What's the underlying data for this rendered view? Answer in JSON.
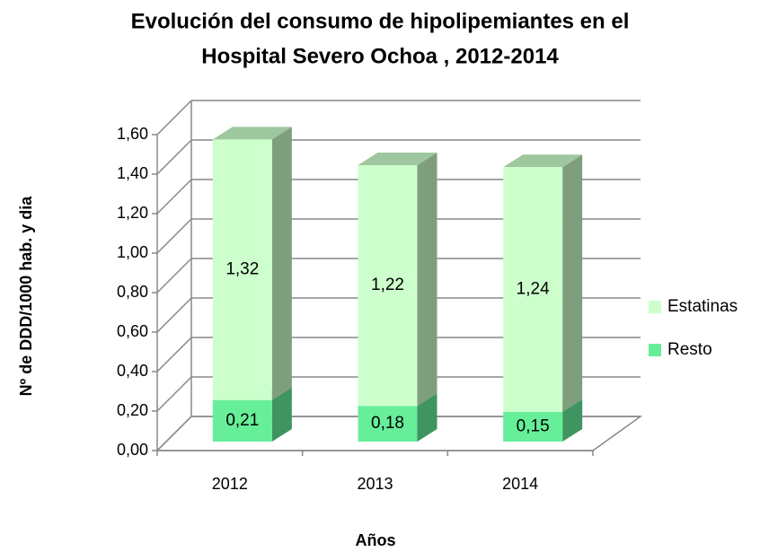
{
  "chart_data": {
    "type": "bar3d_stacked",
    "title": [
      "Evolución del consumo de hipolipemiantes en el",
      "Hospital Severo Ochoa , 2012-2014"
    ],
    "x_label": "Años",
    "y_label": "Nº de DDD/1000 hab. y dia",
    "categories": [
      "2012",
      "2013",
      "2014"
    ],
    "series": [
      {
        "name": "Estatinas",
        "color": "#ccffcc",
        "values": [
          1.32,
          1.22,
          1.24
        ],
        "value_labels": [
          "1,32",
          "1,22",
          "1,24"
        ]
      },
      {
        "name": "Resto",
        "color": "#66ee99",
        "values": [
          0.21,
          0.18,
          0.15
        ],
        "value_labels": [
          "0,21",
          "0,18",
          "0,15"
        ]
      }
    ],
    "ylim": [
      0,
      1.6
    ],
    "yticks": [
      {
        "value": 0,
        "label": "0,00"
      },
      {
        "value": 0.2,
        "label": "0,20"
      },
      {
        "value": 0.4,
        "label": "0,40"
      },
      {
        "value": 0.6,
        "label": "0,60"
      },
      {
        "value": 0.8,
        "label": "0,80"
      },
      {
        "value": 1.0,
        "label": "1,00"
      },
      {
        "value": 1.2,
        "label": "1,20"
      },
      {
        "value": 1.4,
        "label": "1,40"
      },
      {
        "value": 1.6,
        "label": "1,60"
      }
    ],
    "grid": true,
    "legend": "right"
  }
}
